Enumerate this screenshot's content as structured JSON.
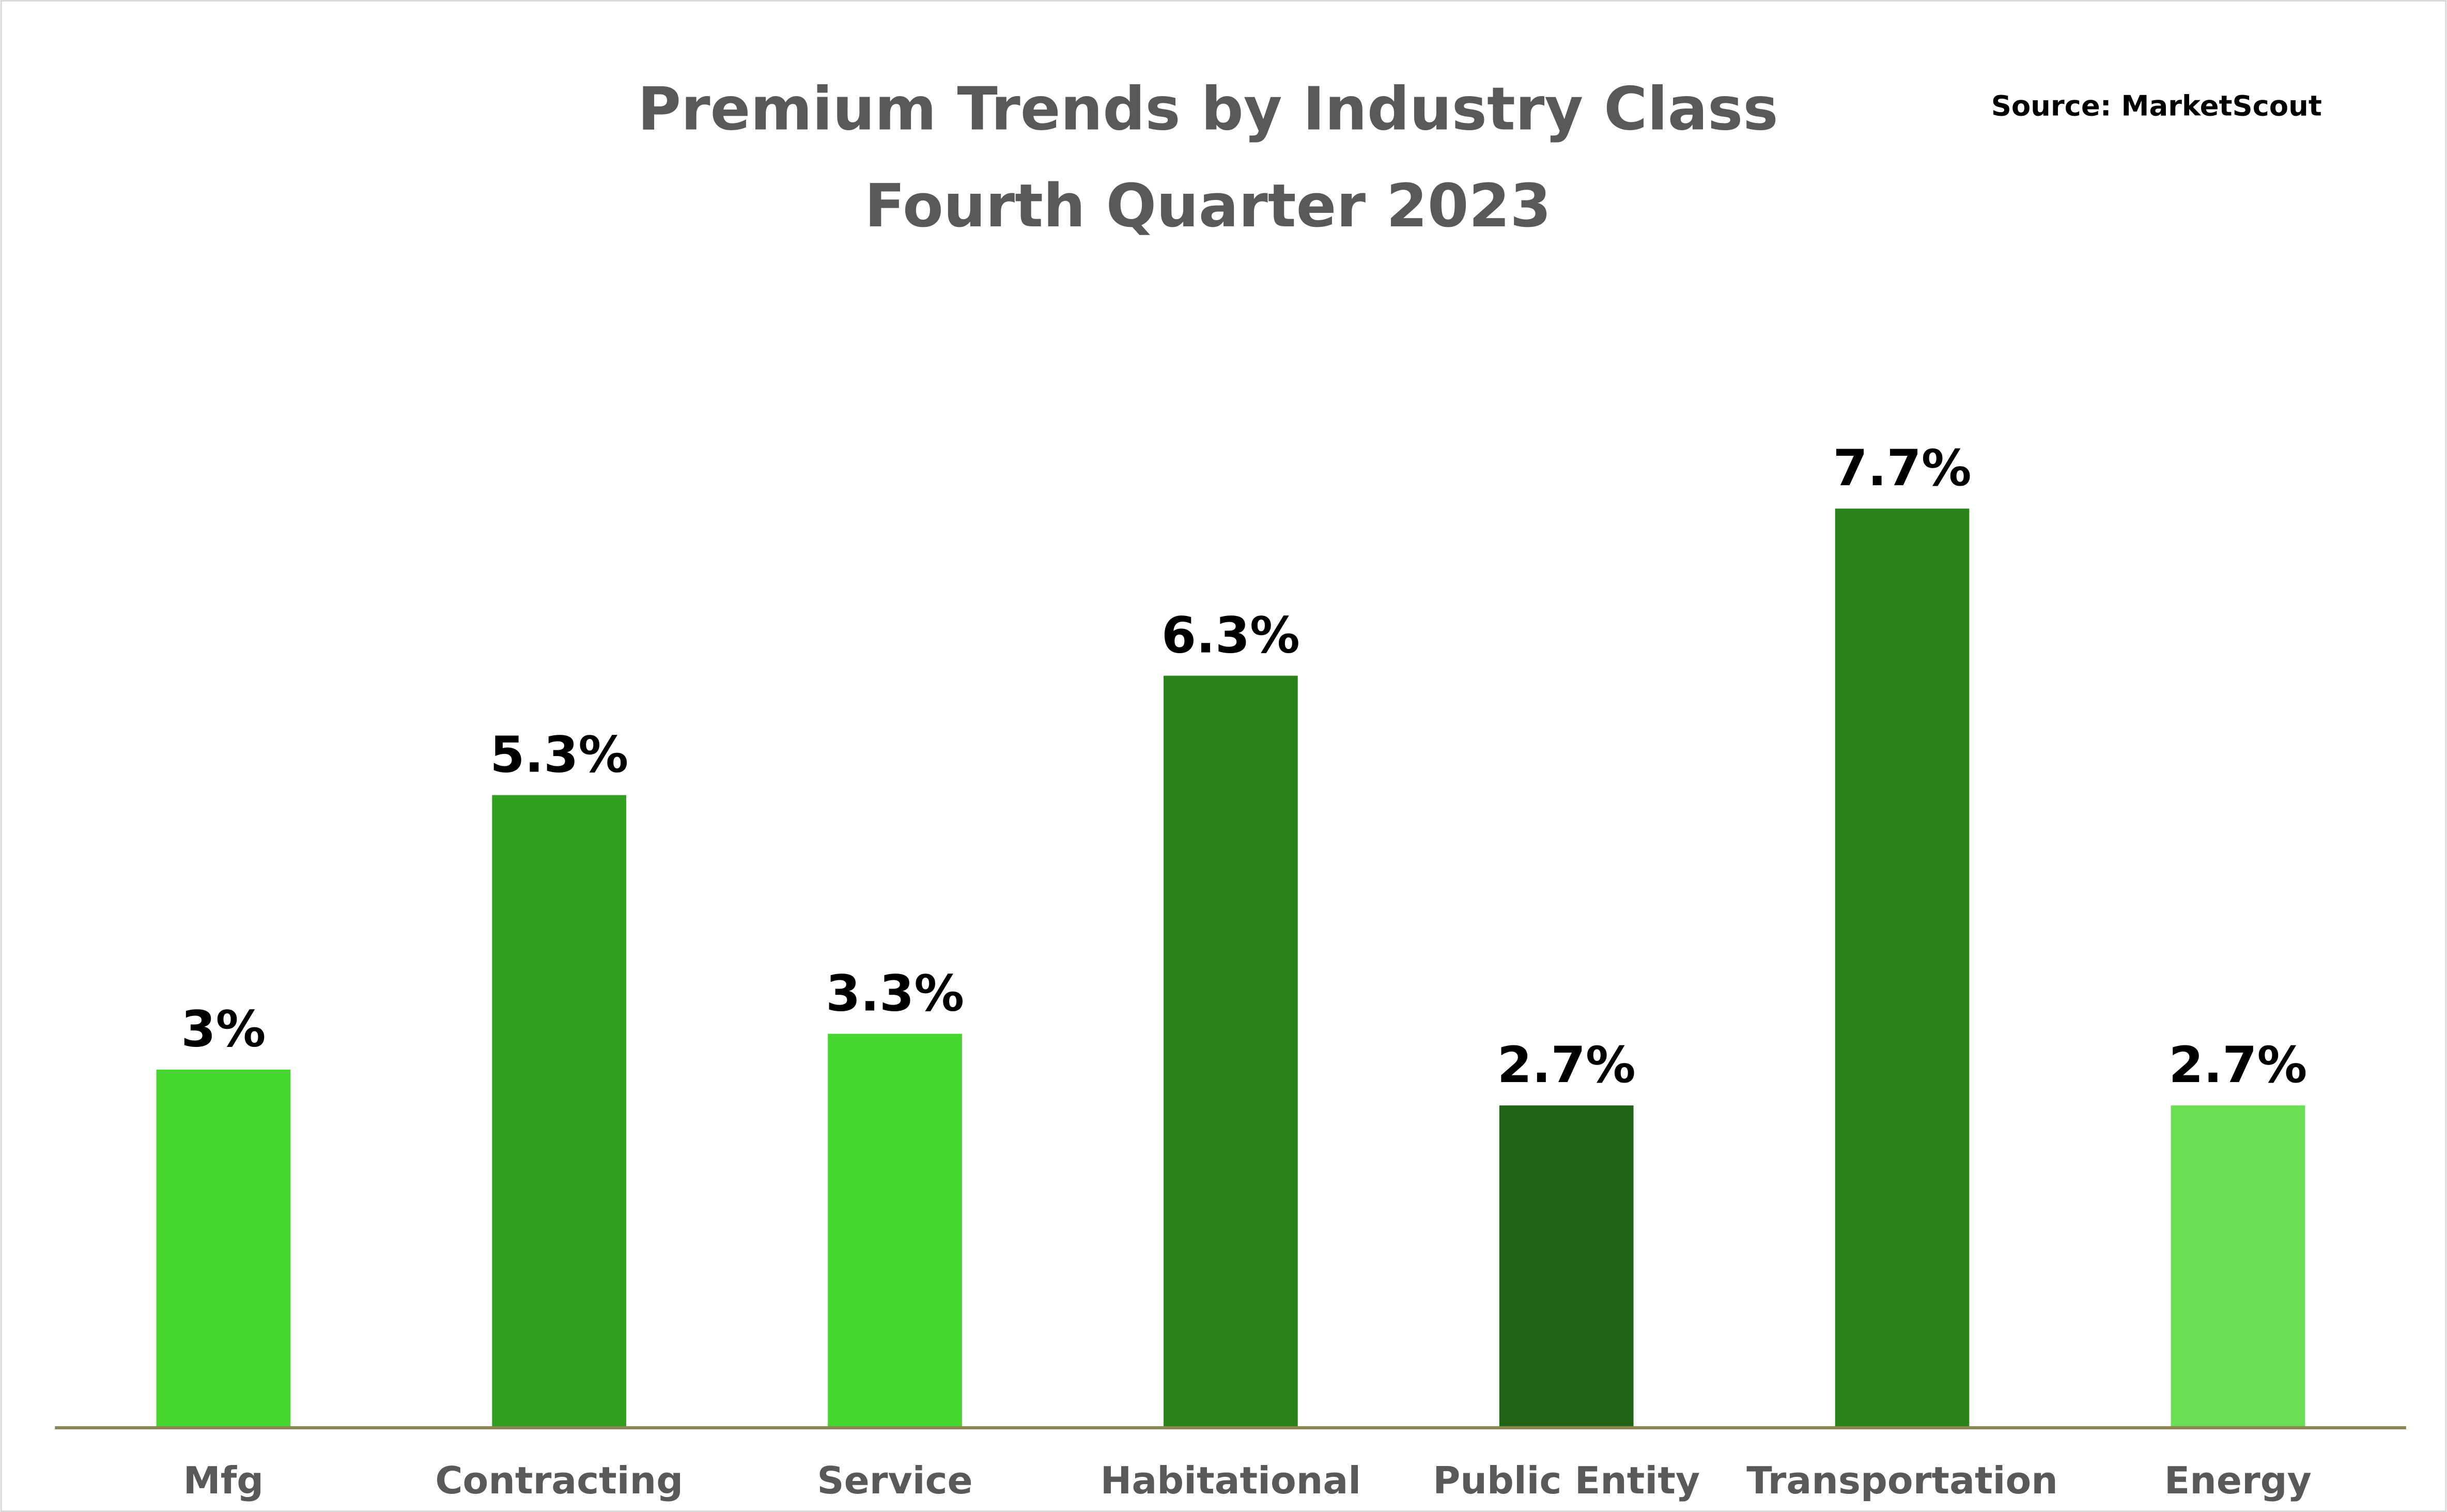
{
  "chart_data": {
    "type": "bar",
    "title": "Premium Trends by Industry Class",
    "subtitle": "Fourth Quarter 2023",
    "source": "Source: MarketScout",
    "categories": [
      "Mfg",
      "Contracting",
      "Service",
      "Habitational",
      "Public Entity",
      "Transportation",
      "Energy"
    ],
    "values": [
      3,
      5.3,
      3.3,
      6.3,
      2.7,
      7.7,
      2.7
    ],
    "value_labels": [
      "3%",
      "5.3%",
      "3.3%",
      "6.3%",
      "2.7%",
      "7.7%",
      "2.7%"
    ],
    "colors": [
      "#46D72E",
      "#31A020",
      "#46D72E",
      "#2A831A",
      "#1E6414",
      "#2A831A",
      "#6ADE55"
    ],
    "axis_color": "#8B8650",
    "xlabel": "",
    "ylabel": "",
    "ylim": [
      0,
      10
    ],
    "grid": false,
    "legend": "none"
  }
}
